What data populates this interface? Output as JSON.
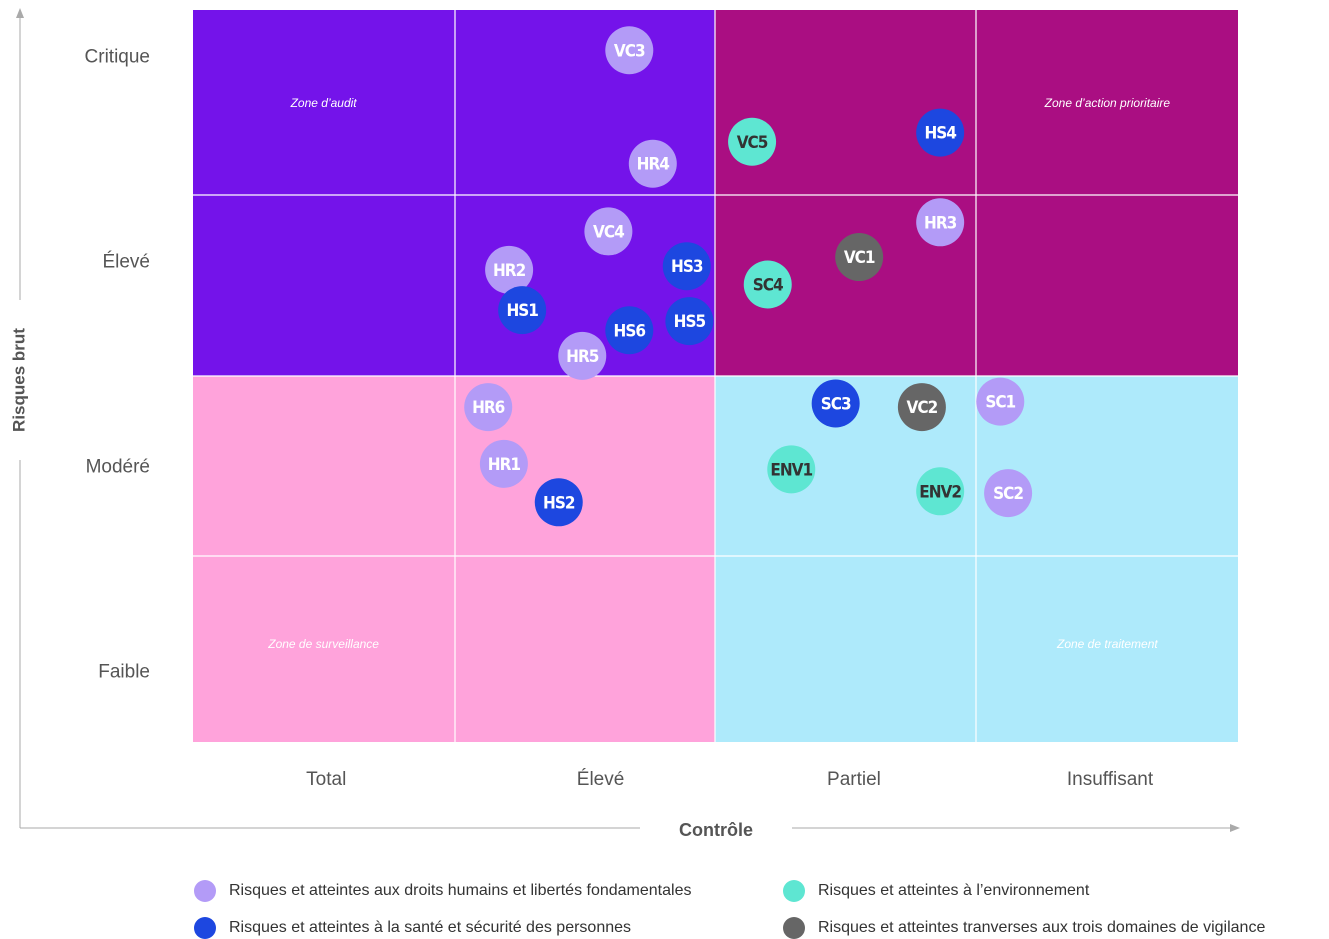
{
  "chart_data": {
    "type": "scatter",
    "xlabel": "Contrôle",
    "ylabel": "Risques brut",
    "xlim": [
      0,
      4
    ],
    "ylim": [
      0,
      4
    ],
    "xticks": [
      {
        "value": 0.51,
        "label": "Total"
      },
      {
        "value": 1.56,
        "label": "Élevé"
      },
      {
        "value": 2.53,
        "label": "Partiel"
      },
      {
        "value": 3.51,
        "label": "Insuffisant"
      }
    ],
    "yticks": [
      {
        "value": 0.38,
        "label": "Faible"
      },
      {
        "value": 1.5,
        "label": "Modéré"
      },
      {
        "value": 2.62,
        "label": "Élevé"
      },
      {
        "value": 3.74,
        "label": "Critique"
      }
    ],
    "zones": [
      {
        "label": "Zone d’audit",
        "color": "#7413ea",
        "text_color": "#ffffff",
        "x": [
          0,
          2
        ],
        "y": [
          2,
          4
        ]
      },
      {
        "label": "Zone d’action prioritaire",
        "color": "#aa0e82",
        "text_color": "#ffffff",
        "x": [
          2,
          4
        ],
        "y": [
          2,
          4
        ]
      },
      {
        "label": "Zone de surveillance",
        "color": "#ffa3db",
        "text_color": "#ffffff",
        "x": [
          0,
          2
        ],
        "y": [
          0,
          2
        ]
      },
      {
        "label": "Zone de traitement",
        "color": "#aeeafb",
        "text_color": "#ffffff",
        "x": [
          2,
          4
        ],
        "y": [
          0,
          2
        ]
      }
    ],
    "series": [
      {
        "name": "Risques et atteintes aux droits humains et libertés fondamentales",
        "color": "#b39bf7",
        "text_color": "#ffffff",
        "labels": [
          "VC3",
          "HR4",
          "HR3",
          "VC4",
          "HR2",
          "HR5",
          "HR6",
          "SC1",
          "HR1",
          "SC2"
        ],
        "x": [
          1.67,
          1.76,
          2.86,
          1.59,
          1.21,
          1.49,
          1.13,
          3.09,
          1.19,
          3.12
        ],
        "y": [
          3.78,
          3.16,
          2.84,
          2.79,
          2.58,
          2.11,
          1.83,
          1.86,
          1.52,
          1.36
        ]
      },
      {
        "name": "Risques et atteintes à la santé et sécurité des personnes",
        "color": "#1d47e0",
        "text_color": "#ffffff",
        "labels": [
          "HS4",
          "HS3",
          "HS1",
          "HS6",
          "HS5",
          "SC3",
          "HS2"
        ],
        "x": [
          2.86,
          1.89,
          1.26,
          1.67,
          1.9,
          2.46,
          1.4
        ],
        "y": [
          3.33,
          2.6,
          2.36,
          2.25,
          2.3,
          1.85,
          1.31
        ]
      },
      {
        "name": "Risques et atteintes à l’environnement",
        "color": "#5ee6d2",
        "text_color": "#333333",
        "labels": [
          "VC5",
          "SC4",
          "ENV1",
          "ENV2"
        ],
        "x": [
          2.14,
          2.2,
          2.29,
          2.86
        ],
        "y": [
          3.28,
          2.5,
          1.49,
          1.37
        ]
      },
      {
        "name": "Risques et atteintes tranverses aux trois domaines de vigilance",
        "color": "#666666",
        "text_color": "#ffffff",
        "labels": [
          "VC1",
          "VC2"
        ],
        "x": [
          2.55,
          2.79
        ],
        "y": [
          2.65,
          1.83
        ]
      }
    ]
  }
}
